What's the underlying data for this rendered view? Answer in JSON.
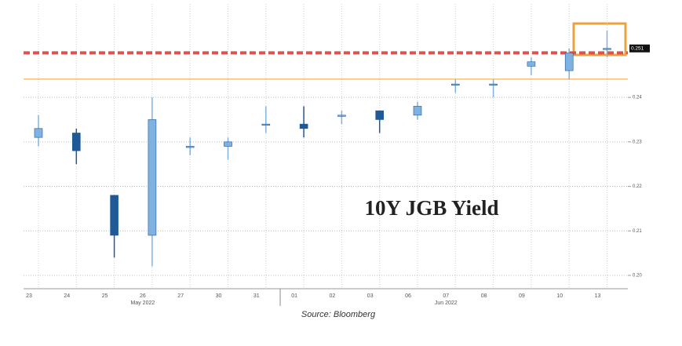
{
  "chart_data": {
    "type": "candlestick",
    "title": "10Y JGB Yield",
    "source": "Source: Bloomberg",
    "categories": [
      "23",
      "24",
      "25",
      "26",
      "27",
      "30",
      "31",
      "01",
      "02",
      "03",
      "06",
      "07",
      "08",
      "09",
      "10",
      "13"
    ],
    "months": [
      "May 2022",
      "Jun 2022"
    ],
    "open": [
      0.231,
      0.232,
      0.218,
      0.209,
      0.229,
      0.229,
      0.234,
      0.234,
      0.236,
      0.237,
      0.236,
      0.243,
      0.243,
      0.247,
      0.246,
      0.251
    ],
    "high": [
      0.236,
      0.233,
      0.218,
      0.24,
      0.231,
      0.231,
      0.238,
      0.238,
      0.237,
      0.237,
      0.239,
      0.244,
      0.244,
      0.249,
      0.251,
      0.255
    ],
    "low": [
      0.229,
      0.225,
      0.204,
      0.202,
      0.227,
      0.226,
      0.232,
      0.231,
      0.234,
      0.232,
      0.235,
      0.241,
      0.24,
      0.245,
      0.244,
      0.249
    ],
    "close": [
      0.233,
      0.228,
      0.209,
      0.235,
      0.229,
      0.23,
      0.234,
      0.233,
      0.236,
      0.235,
      0.238,
      0.243,
      0.243,
      0.248,
      0.25,
      0.251
    ],
    "up_color": "#7fb2e0",
    "down_color": "#1f5a96",
    "ylim": [
      0.197,
      0.261
    ],
    "yticks": [
      {
        "value": 0.2,
        "label": "0.20"
      },
      0.21,
      0.22,
      0.23,
      0.24
    ],
    "last_value": 0.251,
    "reference_lines": [
      {
        "value": 0.25,
        "color": "#d9534f",
        "style": "dashed"
      },
      {
        "value": 0.2441,
        "color": "#f0a030",
        "style": "solid"
      }
    ],
    "grid": true
  }
}
